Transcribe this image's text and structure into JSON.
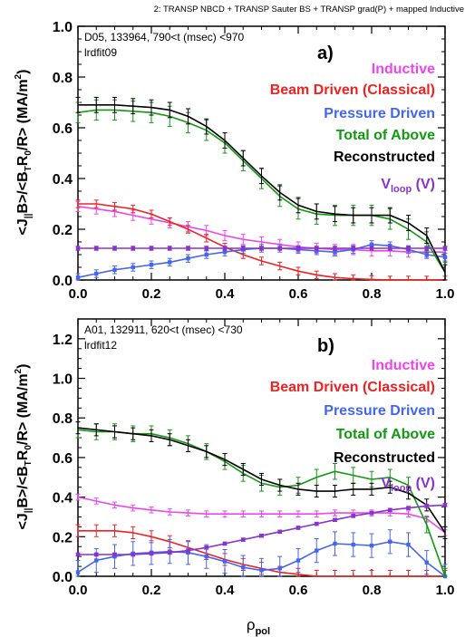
{
  "figure": {
    "header": "2: TRANSP NBCD + TRANSP Sauter BS + TRANSP grad(P) + mapped Inductive",
    "xlabel_main": "ρ",
    "xlabel_sub": "pol",
    "ylabel_parts": [
      "<J",
      "||",
      "B>/<B",
      "T",
      "R",
      "0",
      "/R> (MA/m",
      "2",
      ")"
    ],
    "vloop_main": "V",
    "vloop_sub": "loop",
    "vloop_suffix": " (V)"
  },
  "colors": {
    "inductive": "#ee44ee",
    "beam": "#ee2222",
    "pressure": "#4466ee",
    "total": "#119911",
    "reconstructed": "#000000",
    "vloop": "#8833cc"
  },
  "chart_data": [
    {
      "type": "line",
      "panel_label": "a)",
      "info_line1": "D05, 133964, 790<t (msec) <970",
      "info_line2": "lrdfit09",
      "xlim": [
        0,
        1
      ],
      "ylim": [
        0,
        1.0
      ],
      "xticks": [
        "0.0",
        "0.2",
        "0.4",
        "0.6",
        "0.8",
        "1.0"
      ],
      "yticks": [
        "0.0",
        "0.2",
        "0.4",
        "0.6",
        "0.8",
        "1.0"
      ],
      "legend": [
        "Inductive",
        "Beam Driven (Classical)",
        "Pressure Driven",
        "Total of Above",
        "Reconstructed"
      ],
      "legend_placement": "top-right",
      "x": [
        0.0,
        0.05,
        0.1,
        0.15,
        0.2,
        0.25,
        0.3,
        0.35,
        0.4,
        0.45,
        0.5,
        0.55,
        0.6,
        0.65,
        0.7,
        0.75,
        0.8,
        0.85,
        0.9,
        0.95,
        1.0
      ],
      "series": [
        {
          "key": "inductive",
          "values": [
            0.29,
            0.28,
            0.27,
            0.255,
            0.24,
            0.225,
            0.21,
            0.195,
            0.175,
            0.16,
            0.15,
            0.14,
            0.13,
            0.125,
            0.12,
            0.12,
            0.115,
            0.115,
            0.11,
            0.11,
            0.11
          ],
          "err": 0.02
        },
        {
          "key": "beam",
          "values": [
            0.3,
            0.3,
            0.29,
            0.28,
            0.26,
            0.23,
            0.2,
            0.165,
            0.13,
            0.1,
            0.075,
            0.055,
            0.035,
            0.02,
            0.01,
            0.005,
            0.002,
            0.0,
            0.0,
            0.0,
            0.0
          ],
          "err": 0.015
        },
        {
          "key": "pressure",
          "values": [
            0.01,
            0.025,
            0.04,
            0.05,
            0.06,
            0.07,
            0.085,
            0.1,
            0.11,
            0.12,
            0.125,
            0.125,
            0.12,
            0.115,
            0.11,
            0.12,
            0.14,
            0.135,
            0.12,
            0.1,
            0.09
          ],
          "err": 0.015
        },
        {
          "key": "total",
          "values": [
            0.66,
            0.67,
            0.67,
            0.665,
            0.66,
            0.645,
            0.62,
            0.59,
            0.54,
            0.47,
            0.4,
            0.33,
            0.28,
            0.26,
            0.255,
            0.255,
            0.255,
            0.24,
            0.2,
            0.15,
            0.03
          ],
          "err": 0.04
        },
        {
          "key": "reconstructed",
          "values": [
            0.69,
            0.69,
            0.69,
            0.685,
            0.68,
            0.67,
            0.645,
            0.605,
            0.55,
            0.48,
            0.41,
            0.345,
            0.295,
            0.27,
            0.26,
            0.255,
            0.255,
            0.255,
            0.225,
            0.175,
            0.03
          ],
          "err": 0.03
        },
        {
          "key": "vloop",
          "values": [
            0.125,
            0.125,
            0.125,
            0.125,
            0.125,
            0.125,
            0.125,
            0.125,
            0.125,
            0.125,
            0.125,
            0.125,
            0.125,
            0.125,
            0.125,
            0.125,
            0.125,
            0.125,
            0.125,
            0.125,
            0.125
          ],
          "err": 0.008
        }
      ]
    },
    {
      "type": "line",
      "panel_label": "b)",
      "info_line1": "A01, 132911, 620<t (msec) <730",
      "info_line2": "lrdfit12",
      "xlim": [
        0,
        1
      ],
      "ylim": [
        0,
        1.3
      ],
      "xticks": [
        "0.0",
        "0.2",
        "0.4",
        "0.6",
        "0.8",
        "1.0"
      ],
      "yticks": [
        "0.0",
        "0.2",
        "0.4",
        "0.6",
        "0.8",
        "1.0",
        "1.2"
      ],
      "legend": [
        "Inductive",
        "Beam Driven (Classical)",
        "Pressure Driven",
        "Total of Above",
        "Reconstructed"
      ],
      "legend_placement": "top-right",
      "x": [
        0.0,
        0.05,
        0.1,
        0.15,
        0.2,
        0.25,
        0.3,
        0.35,
        0.4,
        0.45,
        0.5,
        0.55,
        0.6,
        0.65,
        0.7,
        0.75,
        0.8,
        0.85,
        0.9,
        0.95,
        1.0
      ],
      "series": [
        {
          "key": "inductive",
          "values": [
            0.4,
            0.38,
            0.36,
            0.345,
            0.335,
            0.325,
            0.32,
            0.315,
            0.315,
            0.315,
            0.315,
            0.315,
            0.315,
            0.315,
            0.32,
            0.32,
            0.32,
            0.32,
            0.315,
            0.29,
            0.22
          ],
          "err": 0.015
        },
        {
          "key": "beam",
          "values": [
            0.23,
            0.23,
            0.23,
            0.22,
            0.2,
            0.175,
            0.145,
            0.115,
            0.085,
            0.06,
            0.04,
            0.02,
            0.01,
            0.0,
            0.0,
            0.0,
            0.0,
            0.0,
            0.0,
            0.0,
            0.0
          ],
          "err": 0.03
        },
        {
          "key": "pressure",
          "values": [
            0.02,
            0.08,
            0.1,
            0.115,
            0.12,
            0.125,
            0.12,
            0.1,
            0.075,
            0.045,
            0.03,
            0.04,
            0.08,
            0.13,
            0.165,
            0.16,
            0.155,
            0.175,
            0.16,
            0.07,
            0.0
          ],
          "err": 0.06
        },
        {
          "key": "total",
          "values": [
            0.74,
            0.73,
            0.73,
            0.72,
            0.72,
            0.7,
            0.67,
            0.63,
            0.58,
            0.52,
            0.47,
            0.45,
            0.46,
            0.5,
            0.53,
            0.51,
            0.49,
            0.5,
            0.46,
            0.26,
            0.0
          ],
          "err": 0.04
        },
        {
          "key": "reconstructed",
          "values": [
            0.75,
            0.74,
            0.73,
            0.72,
            0.71,
            0.69,
            0.66,
            0.63,
            0.59,
            0.54,
            0.49,
            0.46,
            0.44,
            0.43,
            0.43,
            0.44,
            0.44,
            0.45,
            0.42,
            0.36,
            0.22
          ],
          "err": 0.03
        },
        {
          "key": "vloop",
          "values": [
            0.11,
            0.11,
            0.11,
            0.11,
            0.115,
            0.12,
            0.13,
            0.145,
            0.165,
            0.185,
            0.205,
            0.225,
            0.245,
            0.265,
            0.285,
            0.305,
            0.32,
            0.335,
            0.345,
            0.355,
            0.36
          ],
          "err": 0.008
        }
      ]
    }
  ]
}
